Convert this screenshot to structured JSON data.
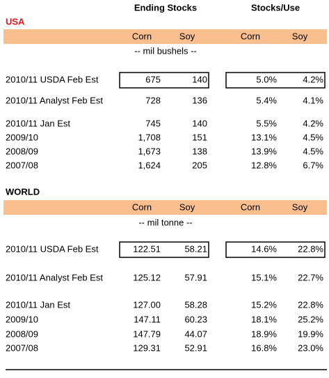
{
  "header": {
    "ending_stocks": "Ending Stocks",
    "stocks_use": "Stocks/Use"
  },
  "sections": [
    {
      "title": "USA",
      "columns": [
        "Corn",
        "Soy",
        "Corn",
        "Soy"
      ],
      "unit": "-- mil bushels --",
      "rows": [
        {
          "label": "2010/11 USDA Feb Est",
          "cells": [
            "675",
            "140",
            "5.0%",
            "4.2%"
          ]
        },
        {
          "label": "2010/11 Analyst Feb Est",
          "cells": [
            "728",
            "136",
            "5.4%",
            "4.1%"
          ]
        },
        {
          "label": "2010/11 Jan Est",
          "cells": [
            "745",
            "140",
            "5.5%",
            "4.2%"
          ]
        },
        {
          "label": "2009/10",
          "cells": [
            "1,708",
            "151",
            "13.1%",
            "4.5%"
          ]
        },
        {
          "label": "2008/09",
          "cells": [
            "1,673",
            "138",
            "13.9%",
            "4.5%"
          ]
        },
        {
          "label": "2007/08",
          "cells": [
            "1,624",
            "205",
            "12.8%",
            "6.7%"
          ]
        }
      ]
    },
    {
      "title": "WORLD",
      "columns": [
        "Corn",
        "Soy",
        "Corn",
        "Soy"
      ],
      "unit": "-- mil tonne --",
      "rows": [
        {
          "label": "2010/11 USDA Feb Est",
          "cells": [
            "122.51",
            "58.21",
            "14.6%",
            "22.8%"
          ]
        },
        {
          "label": "2010/11 Analyst Feb Est",
          "cells": [
            "125.12",
            "57.91",
            "15.1%",
            "22.7%"
          ]
        },
        {
          "label": "2010/11 Jan Est",
          "cells": [
            "127.00",
            "58.28",
            "15.2%",
            "22.8%"
          ]
        },
        {
          "label": "2009/10",
          "cells": [
            "147.11",
            "60.23",
            "18.1%",
            "25.2%"
          ]
        },
        {
          "label": "2008/09",
          "cells": [
            "147.79",
            "44.07",
            "18.9%",
            "19.9%"
          ]
        },
        {
          "label": "2007/08",
          "cells": [
            "129.31",
            "52.91",
            "16.8%",
            "23.0%"
          ]
        }
      ]
    }
  ]
}
